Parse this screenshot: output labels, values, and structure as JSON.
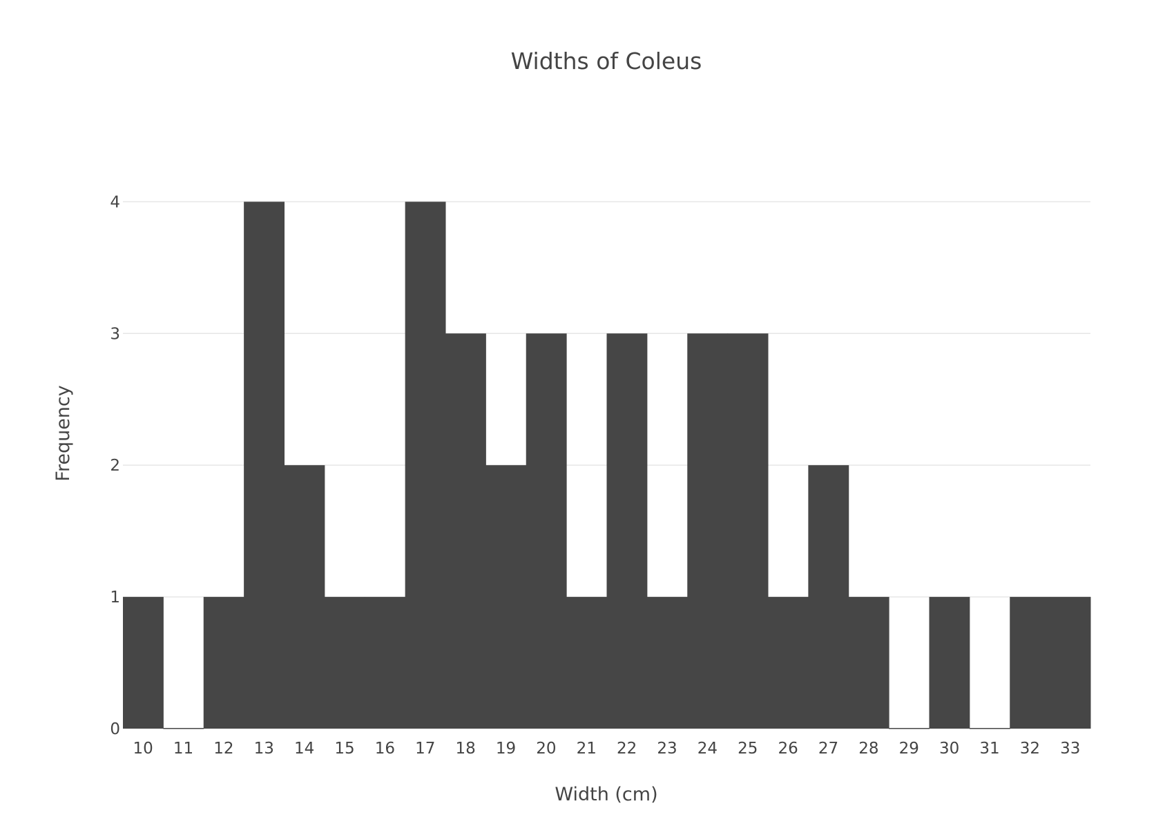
{
  "chart_data": {
    "type": "bar",
    "title": "Widths of Coleus",
    "xlabel": "Width (cm)",
    "ylabel": "Frequency",
    "categories": [
      "10",
      "11",
      "12",
      "13",
      "14",
      "15",
      "16",
      "17",
      "18",
      "19",
      "20",
      "21",
      "22",
      "23",
      "24",
      "25",
      "26",
      "27",
      "28",
      "29",
      "30",
      "31",
      "32",
      "33"
    ],
    "values": [
      1,
      0,
      1,
      4,
      2,
      1,
      1,
      4,
      3,
      2,
      3,
      1,
      3,
      1,
      3,
      3,
      1,
      2,
      1,
      0,
      1,
      0,
      1,
      1
    ],
    "ylim": [
      0,
      4.4
    ],
    "yticks": [
      0,
      1,
      2,
      3,
      4
    ],
    "grid": true,
    "colors": {
      "bar": "#464646",
      "grid": "#e6e6e6",
      "text": "#444444"
    }
  }
}
